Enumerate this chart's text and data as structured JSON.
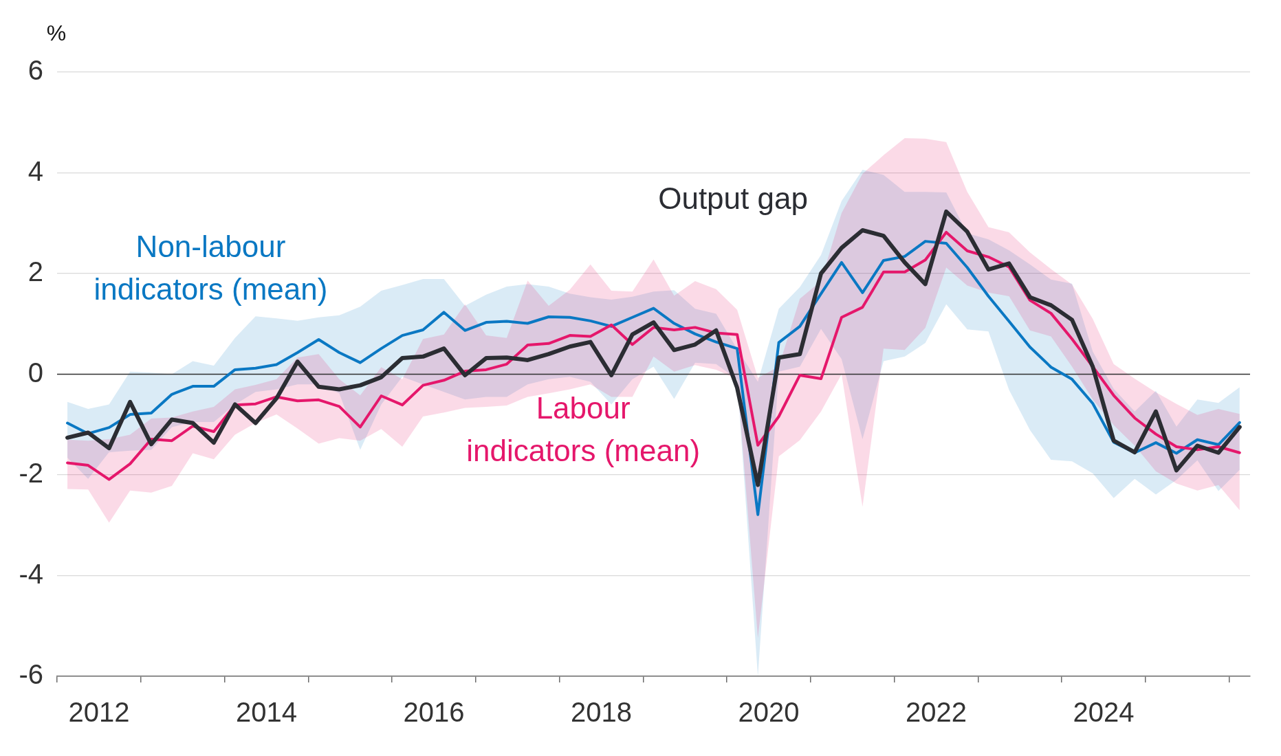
{
  "chart_data": {
    "type": "line",
    "ylabel": "%",
    "x": [
      "2012-02-15",
      "2012-05-15",
      "2012-08-15",
      "2012-11-15",
      "2013-02-15",
      "2013-05-15",
      "2013-08-15",
      "2013-11-15",
      "2014-02-15",
      "2014-05-15",
      "2014-08-15",
      "2014-11-15",
      "2015-02-15",
      "2015-05-15",
      "2015-08-15",
      "2015-11-15",
      "2016-02-15",
      "2016-05-15",
      "2016-08-15",
      "2016-11-15",
      "2017-02-15",
      "2017-05-15",
      "2017-08-15",
      "2017-11-15",
      "2018-02-15",
      "2018-05-15",
      "2018-08-15",
      "2018-11-15",
      "2019-02-15",
      "2019-05-15",
      "2019-08-15",
      "2019-11-15",
      "2020-02-15",
      "2020-05-15",
      "2020-08-15",
      "2020-11-15",
      "2021-02-15",
      "2021-05-15",
      "2021-08-15",
      "2021-11-15",
      "2022-02-15",
      "2022-05-15",
      "2022-08-15",
      "2022-11-15",
      "2023-02-15",
      "2023-05-15",
      "2023-08-15",
      "2023-11-15",
      "2024-02-15",
      "2024-05-15",
      "2024-08-15",
      "2024-11-15",
      "2025-02-15",
      "2025-05-15",
      "2025-08-15",
      "2025-11-15",
      "2026-02-15"
    ],
    "xlim": [
      "2012-01-01",
      "2026-04-01"
    ],
    "xticks": [
      {
        "value": "2012-01-01",
        "label": null
      },
      {
        "value": "2012-07-01",
        "label": "2012"
      },
      {
        "value": "2013-01-01",
        "label": null
      },
      {
        "value": "2014-01-01",
        "label": null
      },
      {
        "value": "2014-07-01",
        "label": "2014"
      },
      {
        "value": "2015-01-01",
        "label": null
      },
      {
        "value": "2016-01-01",
        "label": null
      },
      {
        "value": "2016-07-01",
        "label": "2016"
      },
      {
        "value": "2017-01-01",
        "label": null
      },
      {
        "value": "2018-01-01",
        "label": null
      },
      {
        "value": "2018-07-01",
        "label": "2018"
      },
      {
        "value": "2019-01-01",
        "label": null
      },
      {
        "value": "2020-01-01",
        "label": null
      },
      {
        "value": "2020-07-01",
        "label": "2020"
      },
      {
        "value": "2021-01-01",
        "label": null
      },
      {
        "value": "2022-01-01",
        "label": null
      },
      {
        "value": "2022-07-01",
        "label": "2022"
      },
      {
        "value": "2023-01-01",
        "label": null
      },
      {
        "value": "2024-01-01",
        "label": null
      },
      {
        "value": "2024-07-01",
        "label": "2024"
      },
      {
        "value": "2025-01-01",
        "label": null
      },
      {
        "value": "2026-01-01",
        "label": null
      }
    ],
    "ylim": [
      -6,
      6
    ],
    "yticks": [
      -6,
      -4,
      -2,
      0,
      2,
      4,
      6
    ],
    "grid": "y",
    "ref_lines": [
      {
        "axis": "y",
        "value": 0,
        "color": "#333333"
      }
    ],
    "series": [
      {
        "name": "Non-labour indicators (mean)",
        "color": "#0a78c3",
        "values": [
          -0.97,
          -1.18,
          -1.06,
          -0.8,
          -0.77,
          -0.4,
          -0.24,
          -0.24,
          0.09,
          0.12,
          0.19,
          0.43,
          0.69,
          0.43,
          0.23,
          0.51,
          0.77,
          0.88,
          1.23,
          0.87,
          1.03,
          1.05,
          1.01,
          1.14,
          1.13,
          1.06,
          0.95,
          1.13,
          1.31,
          1.01,
          0.8,
          0.64,
          0.51,
          -2.79,
          0.63,
          0.95,
          1.6,
          2.22,
          1.62,
          2.26,
          2.34,
          2.64,
          2.6,
          2.12,
          1.55,
          1.05,
          0.54,
          0.14,
          -0.1,
          -0.58,
          -1.35,
          -1.56,
          -1.36,
          -1.57,
          -1.3,
          -1.4,
          -0.96
        ],
        "lower": [
          -1.66,
          -2.08,
          -1.55,
          -1.52,
          -1.5,
          -1.05,
          -0.95,
          -0.95,
          -0.6,
          -0.35,
          -0.3,
          -0.2,
          -0.2,
          -0.38,
          -1.5,
          -0.6,
          -0.05,
          -0.2,
          -0.35,
          -0.5,
          -0.45,
          -0.45,
          -0.2,
          -0.1,
          -0.05,
          -0.15,
          -0.6,
          -0.1,
          0.15,
          -0.49,
          0.23,
          0.2,
          -0.1,
          -6,
          0.05,
          0.15,
          0.9,
          0.3,
          -1.29,
          0.26,
          0.35,
          0.62,
          1.39,
          0.89,
          0.85,
          -0.31,
          -1.11,
          -1.7,
          -1.73,
          -1.97,
          -2.46,
          -2.08,
          -2.39,
          -2.1,
          -1.71,
          -2.32,
          -1.9
        ],
        "upper": [
          -0.55,
          -0.69,
          -0.6,
          0.05,
          0.03,
          0.0,
          0.26,
          0.17,
          0.72,
          1.15,
          1.11,
          1.06,
          1.13,
          1.17,
          1.34,
          1.66,
          1.77,
          1.89,
          1.89,
          1.36,
          1.58,
          1.74,
          1.79,
          1.74,
          1.6,
          1.53,
          1.48,
          1.54,
          1.64,
          1.67,
          1.3,
          1.2,
          0.5,
          -0.15,
          1.3,
          1.73,
          2.37,
          3.44,
          4.06,
          3.96,
          3.62,
          3.62,
          3.61,
          2.8,
          2.68,
          2.46,
          2.18,
          1.88,
          1.8,
          0.45,
          -0.29,
          -0.74,
          -0.33,
          -1.04,
          -0.5,
          -0.57,
          -0.26
        ]
      },
      {
        "name": "Labour indicators (mean)",
        "color": "#e5176b",
        "values": [
          -1.76,
          -1.81,
          -2.09,
          -1.78,
          -1.29,
          -1.32,
          -1.03,
          -1.14,
          -0.61,
          -0.59,
          -0.45,
          -0.53,
          -0.51,
          -0.64,
          -1.05,
          -0.43,
          -0.61,
          -0.22,
          -0.12,
          0.06,
          0.09,
          0.2,
          0.58,
          0.61,
          0.77,
          0.75,
          0.98,
          0.59,
          0.93,
          0.88,
          0.93,
          0.82,
          0.79,
          -1.41,
          -0.84,
          -0.02,
          -0.09,
          1.13,
          1.33,
          2.03,
          2.03,
          2.27,
          2.82,
          2.45,
          2.33,
          2.13,
          1.47,
          1.21,
          0.7,
          0.15,
          -0.42,
          -0.87,
          -1.19,
          -1.44,
          -1.5,
          -1.44,
          -1.56
        ],
        "lower": [
          -2.28,
          -2.29,
          -2.95,
          -2.31,
          -2.35,
          -2.22,
          -1.57,
          -1.69,
          -1.2,
          -0.97,
          -0.8,
          -1.08,
          -1.38,
          -1.27,
          -1.32,
          -1.09,
          -1.44,
          -0.84,
          -0.76,
          -0.67,
          -0.65,
          -0.62,
          -0.45,
          -0.38,
          -0.3,
          -0.2,
          -0.45,
          -0.45,
          0.35,
          0.05,
          0.18,
          0.09,
          -0.1,
          -5.24,
          -1.63,
          -1.31,
          -0.74,
          0.0,
          -2.63,
          0.51,
          0.48,
          0.92,
          2.12,
          1.76,
          1.62,
          1.55,
          0.87,
          0.75,
          0.15,
          -0.5,
          -1.01,
          -1.42,
          -1.93,
          -2.17,
          -2.31,
          -2.2,
          -2.7
        ],
        "upper": [
          -1.3,
          -1.32,
          -1.29,
          -1.2,
          -0.88,
          -0.86,
          -0.74,
          -0.65,
          -0.3,
          -0.21,
          -0.1,
          0.33,
          0.4,
          -0.1,
          -0.42,
          0.14,
          -0.1,
          0.7,
          0.79,
          1.39,
          0.77,
          0.72,
          1.86,
          1.36,
          1.68,
          2.18,
          1.66,
          1.64,
          2.28,
          1.56,
          1.85,
          1.69,
          1.28,
          -0.07,
          0.15,
          1.5,
          1.85,
          3.2,
          3.98,
          4.35,
          4.69,
          4.68,
          4.61,
          3.62,
          2.92,
          2.82,
          2.42,
          2.09,
          1.78,
          1.1,
          0.2,
          -0.09,
          -0.36,
          -0.59,
          -0.81,
          -0.69,
          -0.79
        ]
      },
      {
        "name": "Output gap",
        "color": "#2b2d33",
        "values": [
          -1.26,
          -1.16,
          -1.47,
          -0.55,
          -1.39,
          -0.9,
          -0.97,
          -1.36,
          -0.6,
          -0.97,
          -0.48,
          0.25,
          -0.25,
          -0.3,
          -0.22,
          -0.06,
          0.32,
          0.35,
          0.51,
          -0.02,
          0.32,
          0.33,
          0.28,
          0.4,
          0.55,
          0.64,
          -0.02,
          0.79,
          1.03,
          0.48,
          0.59,
          0.87,
          -0.27,
          -2.2,
          0.33,
          0.4,
          2.0,
          2.51,
          2.86,
          2.75,
          2.22,
          1.79,
          3.23,
          2.83,
          2.08,
          2.2,
          1.53,
          1.37,
          1.08,
          0.15,
          -1.32,
          -1.55,
          -0.74,
          -1.91,
          -1.42,
          -1.56,
          -1.05
        ]
      }
    ]
  }
}
